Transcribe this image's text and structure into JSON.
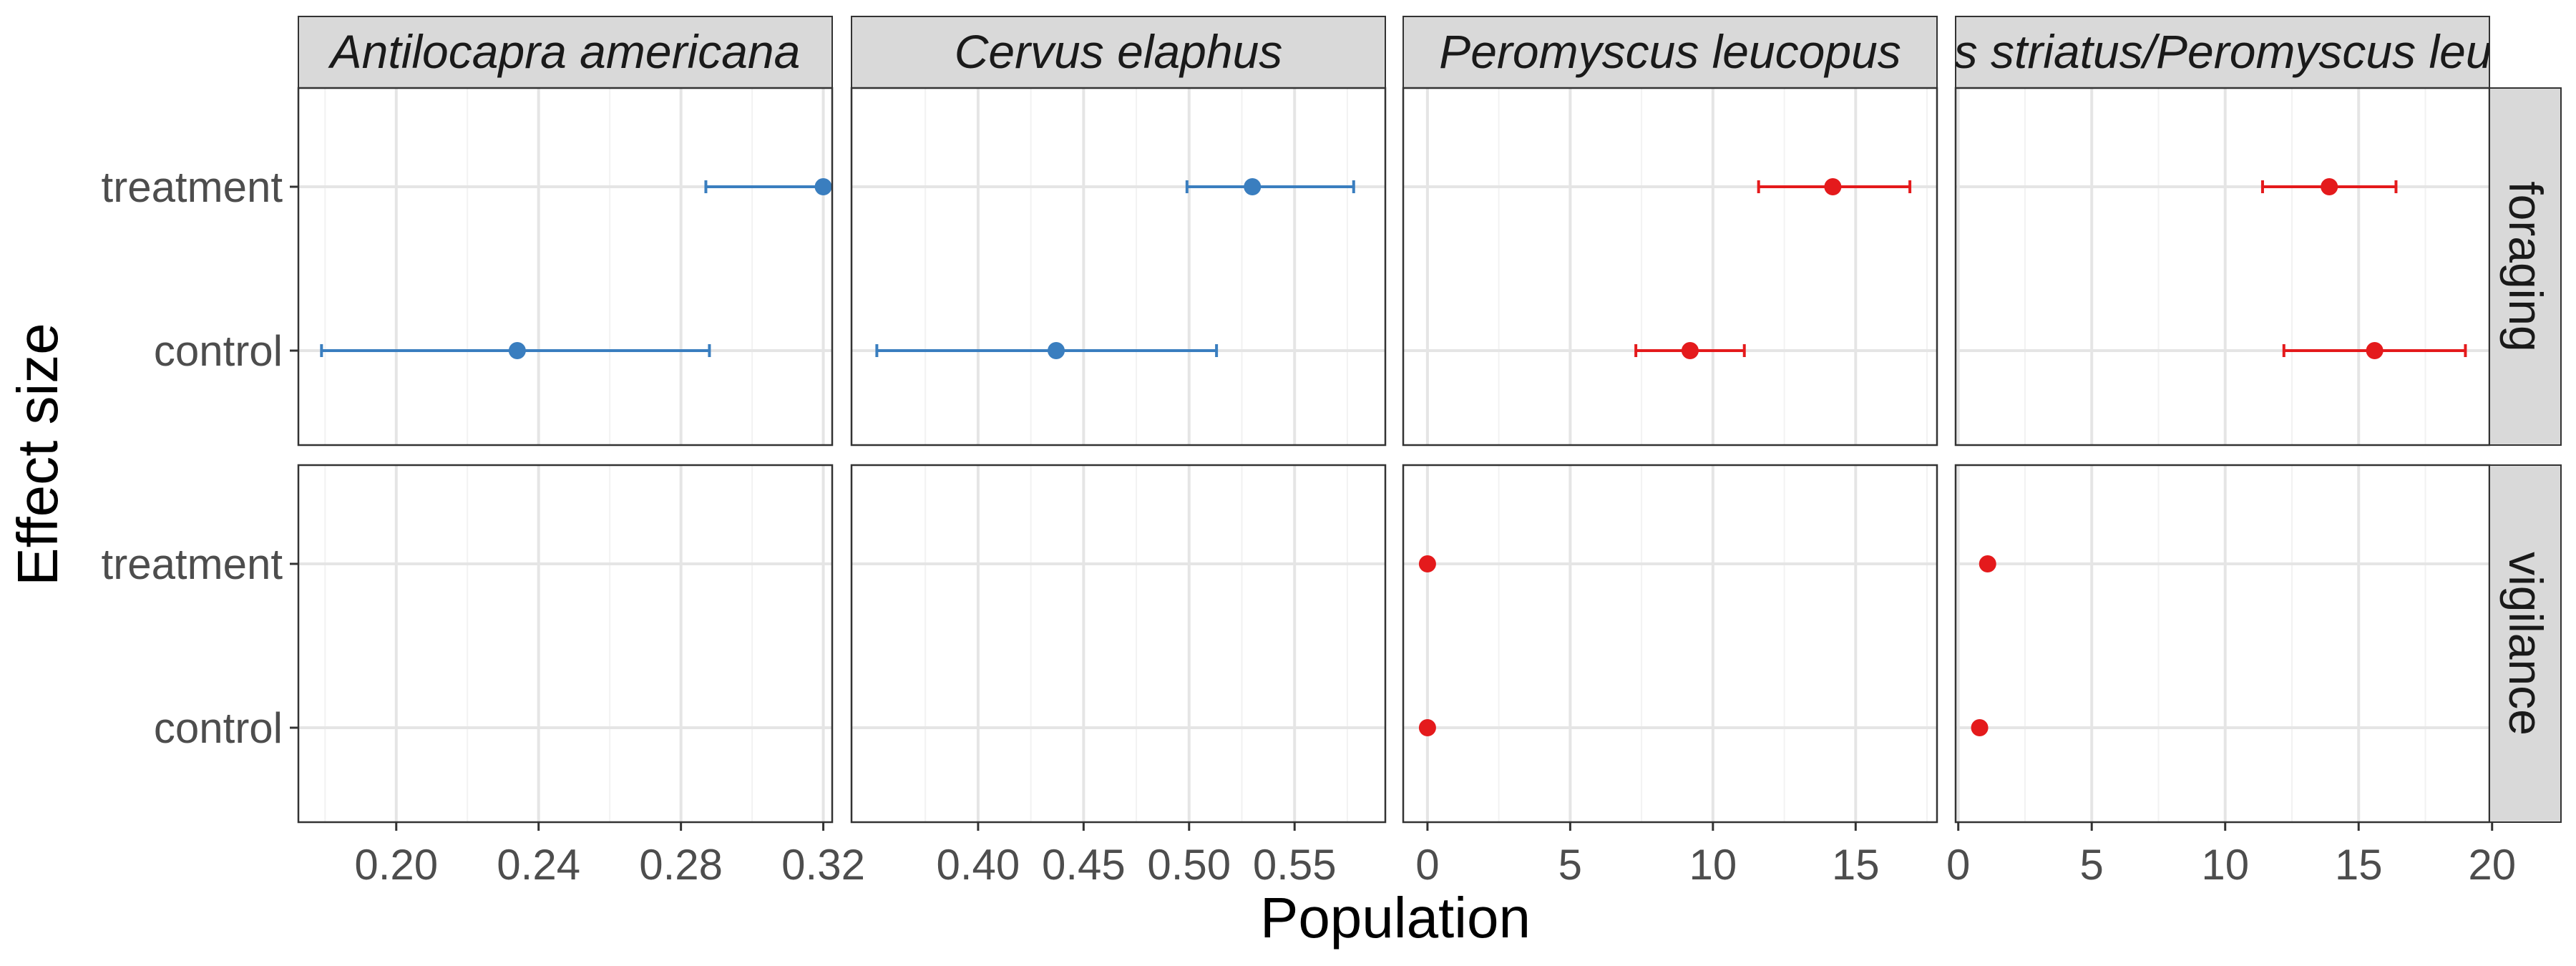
{
  "chart_data": {
    "type": "scatter",
    "subtype": "point-range facet grid",
    "xlabel": "Population",
    "ylabel": "Effect size",
    "categories": [
      "treatment",
      "control"
    ],
    "rows": [
      "foraging",
      "vigilance"
    ],
    "grid": true,
    "legend": "none",
    "colors": {
      "blue": "#3a7ebf",
      "red": "#e41a1c"
    },
    "columns": [
      {
        "strip": "Antilocapra americana",
        "xlim": [
          0.1725,
          0.3225
        ],
        "ticks": [
          0.2,
          0.24,
          0.28,
          0.32
        ],
        "tick_labels": [
          "0.20",
          "0.24",
          "0.28",
          "0.32"
        ],
        "minor_ticks": [
          0.18,
          0.22,
          0.26,
          0.3
        ],
        "color": "#3a7ebf",
        "panels": [
          {
            "row": "foraging",
            "points": [
              {
                "category": "treatment",
                "value": 0.32,
                "low": 0.287,
                "high": null
              },
              {
                "category": "control",
                "value": 0.234,
                "low": 0.179,
                "high": 0.288
              }
            ]
          },
          {
            "row": "vigilance",
            "points": []
          }
        ]
      },
      {
        "strip": "Cervus elaphus",
        "xlim": [
          0.34,
          0.593
        ],
        "ticks": [
          0.4,
          0.45,
          0.5,
          0.55
        ],
        "tick_labels": [
          "0.40",
          "0.45",
          "0.50",
          "0.55"
        ],
        "minor_ticks": [
          0.375,
          0.425,
          0.475,
          0.525,
          0.575
        ],
        "color": "#3a7ebf",
        "panels": [
          {
            "row": "foraging",
            "points": [
              {
                "category": "treatment",
                "value": 0.53,
                "low": 0.499,
                "high": 0.578
              },
              {
                "category": "control",
                "value": 0.437,
                "low": 0.352,
                "high": 0.513
              }
            ]
          },
          {
            "row": "vigilance",
            "points": []
          }
        ]
      },
      {
        "strip": "Peromyscus leucopus",
        "xlim": [
          -0.85,
          17.85
        ],
        "ticks": [
          0,
          5,
          10,
          15
        ],
        "tick_labels": [
          "0",
          "5",
          "10",
          "15"
        ],
        "minor_ticks": [
          2.5,
          7.5,
          12.5,
          17.5
        ],
        "color": "#e41a1c",
        "panels": [
          {
            "row": "foraging",
            "points": [
              {
                "category": "treatment",
                "value": 14.2,
                "low": 11.6,
                "high": 16.9
              },
              {
                "category": "control",
                "value": 9.2,
                "low": 7.3,
                "high": 11.1
              }
            ]
          },
          {
            "row": "vigilance",
            "points": [
              {
                "category": "treatment",
                "value": 0.0,
                "low": null,
                "high": null
              },
              {
                "category": "control",
                "value": 0.0,
                "low": null,
                "high": null
              }
            ]
          }
        ]
      },
      {
        "strip": "Tamias striatus/Peromyscus leucopus",
        "xlim": [
          -0.1,
          19.9
        ],
        "ticks": [
          0,
          5,
          10,
          15,
          20
        ],
        "tick_labels": [
          "0",
          "5",
          "10",
          "15",
          "20"
        ],
        "minor_ticks": [
          2.5,
          7.5,
          12.5,
          17.5
        ],
        "color": "#e41a1c",
        "panels": [
          {
            "row": "foraging",
            "points": [
              {
                "category": "treatment",
                "value": 13.9,
                "low": 11.4,
                "high": 16.4
              },
              {
                "category": "control",
                "value": 15.6,
                "low": 12.2,
                "high": 19.0
              }
            ]
          },
          {
            "row": "vigilance",
            "points": [
              {
                "category": "treatment",
                "value": 1.1,
                "low": null,
                "high": null
              },
              {
                "category": "control",
                "value": 0.8,
                "low": null,
                "high": null
              }
            ]
          }
        ]
      }
    ]
  }
}
